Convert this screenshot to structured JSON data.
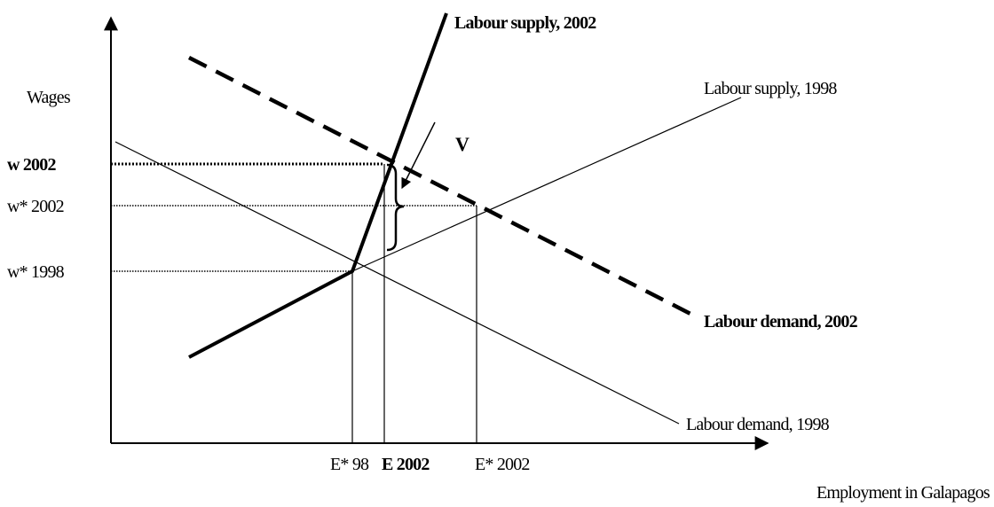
{
  "axes": {
    "y_label": "Wages",
    "x_label": "Employment in Galapagos"
  },
  "curves": {
    "supply_2002": "Labour supply, 2002",
    "supply_1998": "Labour supply, 1998",
    "demand_2002": "Labour demand, 2002",
    "demand_1998": "Labour demand, 1998"
  },
  "wage_labels": [
    "w 2002",
    "w* 2002",
    "w* 1998"
  ],
  "employment_labels": [
    "E* 98",
    "E 2002",
    "E* 2002"
  ],
  "annotation": "V"
}
